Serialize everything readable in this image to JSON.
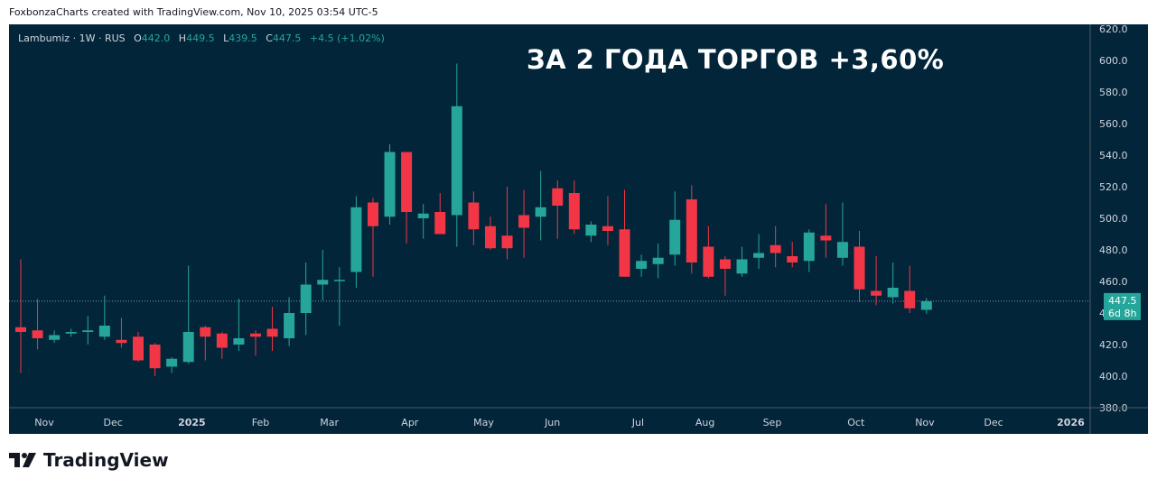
{
  "header": {
    "attribution": "FoxbonzaCharts created with TradingView.com, Nov 10, 2025 03:54 UTC-5"
  },
  "legend": {
    "symbol": "Lambumiz · 1W · RUS",
    "open_label": "O",
    "open": "442.0",
    "high_label": "H",
    "high": "449.5",
    "low_label": "L",
    "low": "439.5",
    "close_label": "C",
    "close": "447.5",
    "change": "+4.5 (+1.02%)"
  },
  "overlay_title": "ЗА 2 ГОДА ТОРГОВ +3,60%",
  "price_badge": {
    "price": "447.5",
    "countdown": "6d 8h"
  },
  "footer": {
    "brand": "TradingView"
  },
  "colors": {
    "up": "#26a69a",
    "down": "#f23645",
    "background": "#02253a",
    "badge": "#26a69a"
  },
  "chart_data": {
    "type": "candlestick",
    "y_axis": {
      "min": 380,
      "max": 620,
      "ticks": [
        "620.0",
        "600.0",
        "580.0",
        "560.0",
        "540.0",
        "520.0",
        "500.0",
        "480.0",
        "460.0",
        "440.0",
        "420.0",
        "400.0",
        "380.0"
      ]
    },
    "x_ticks": [
      "Nov",
      "Dec",
      "2025",
      "Feb",
      "Mar",
      "Apr",
      "May",
      "Jun",
      "Jul",
      "Aug",
      "Sep",
      "Oct",
      "Nov",
      "Dec",
      "2026"
    ],
    "last_price": 447.5,
    "candles": [
      {
        "o": 431,
        "h": 474,
        "l": 402,
        "c": 428
      },
      {
        "o": 429,
        "h": 449,
        "l": 417,
        "c": 424
      },
      {
        "o": 423,
        "h": 429,
        "l": 421,
        "c": 426
      },
      {
        "o": 427,
        "h": 430,
        "l": 425,
        "c": 428
      },
      {
        "o": 428,
        "h": 438,
        "l": 420,
        "c": 429
      },
      {
        "o": 425,
        "h": 451,
        "l": 423,
        "c": 432
      },
      {
        "o": 423,
        "h": 437,
        "l": 418,
        "c": 421
      },
      {
        "o": 425,
        "h": 428,
        "l": 409,
        "c": 410
      },
      {
        "o": 420,
        "h": 421,
        "l": 400,
        "c": 405
      },
      {
        "o": 406,
        "h": 412,
        "l": 402,
        "c": 411
      },
      {
        "o": 409,
        "h": 470,
        "l": 408,
        "c": 428
      },
      {
        "o": 431,
        "h": 432,
        "l": 410,
        "c": 425
      },
      {
        "o": 427,
        "h": 428,
        "l": 411,
        "c": 418
      },
      {
        "o": 420,
        "h": 449,
        "l": 416,
        "c": 424
      },
      {
        "o": 427,
        "h": 429,
        "l": 413,
        "c": 425
      },
      {
        "o": 430,
        "h": 444,
        "l": 416,
        "c": 425
      },
      {
        "o": 424,
        "h": 450,
        "l": 419,
        "c": 440
      },
      {
        "o": 440,
        "h": 472,
        "l": 426,
        "c": 458
      },
      {
        "o": 458,
        "h": 480,
        "l": 448,
        "c": 461
      },
      {
        "o": 461,
        "h": 469,
        "l": 432,
        "c": 461
      },
      {
        "o": 466,
        "h": 514,
        "l": 456,
        "c": 507
      },
      {
        "o": 510,
        "h": 513,
        "l": 463,
        "c": 495
      },
      {
        "o": 501,
        "h": 547,
        "l": 496,
        "c": 542
      },
      {
        "o": 542,
        "h": 542,
        "l": 484,
        "c": 504
      },
      {
        "o": 500,
        "h": 509,
        "l": 487,
        "c": 503
      },
      {
        "o": 504,
        "h": 516,
        "l": 490,
        "c": 490
      },
      {
        "o": 502,
        "h": 598,
        "l": 482,
        "c": 571
      },
      {
        "o": 510,
        "h": 517,
        "l": 483,
        "c": 493
      },
      {
        "o": 495,
        "h": 501,
        "l": 480,
        "c": 481
      },
      {
        "o": 489,
        "h": 520,
        "l": 474,
        "c": 481
      },
      {
        "o": 502,
        "h": 518,
        "l": 475,
        "c": 494
      },
      {
        "o": 501,
        "h": 530,
        "l": 486,
        "c": 507
      },
      {
        "o": 519,
        "h": 524,
        "l": 487,
        "c": 508
      },
      {
        "o": 516,
        "h": 524,
        "l": 490,
        "c": 493
      },
      {
        "o": 489,
        "h": 498,
        "l": 485,
        "c": 496
      },
      {
        "o": 495,
        "h": 514,
        "l": 483,
        "c": 492
      },
      {
        "o": 493,
        "h": 518,
        "l": 463,
        "c": 463
      },
      {
        "o": 468,
        "h": 477,
        "l": 463,
        "c": 473
      },
      {
        "o": 471,
        "h": 484,
        "l": 462,
        "c": 475
      },
      {
        "o": 477,
        "h": 517,
        "l": 470,
        "c": 499
      },
      {
        "o": 512,
        "h": 521,
        "l": 465,
        "c": 472
      },
      {
        "o": 482,
        "h": 495,
        "l": 462,
        "c": 463
      },
      {
        "o": 474,
        "h": 476,
        "l": 451,
        "c": 468
      },
      {
        "o": 465,
        "h": 482,
        "l": 463,
        "c": 474
      },
      {
        "o": 475,
        "h": 490,
        "l": 468,
        "c": 478
      },
      {
        "o": 483,
        "h": 495,
        "l": 469,
        "c": 478
      },
      {
        "o": 476,
        "h": 485,
        "l": 469,
        "c": 472
      },
      {
        "o": 473,
        "h": 493,
        "l": 466,
        "c": 491
      },
      {
        "o": 489,
        "h": 509,
        "l": 475,
        "c": 486
      },
      {
        "o": 475,
        "h": 510,
        "l": 470,
        "c": 485
      },
      {
        "o": 482,
        "h": 492,
        "l": 447,
        "c": 455
      },
      {
        "o": 454,
        "h": 476,
        "l": 445,
        "c": 451
      },
      {
        "o": 450,
        "h": 472,
        "l": 446,
        "c": 456
      },
      {
        "o": 454,
        "h": 470,
        "l": 440,
        "c": 443
      },
      {
        "o": 442,
        "h": 449.5,
        "l": 439.5,
        "c": 447.5
      }
    ]
  }
}
